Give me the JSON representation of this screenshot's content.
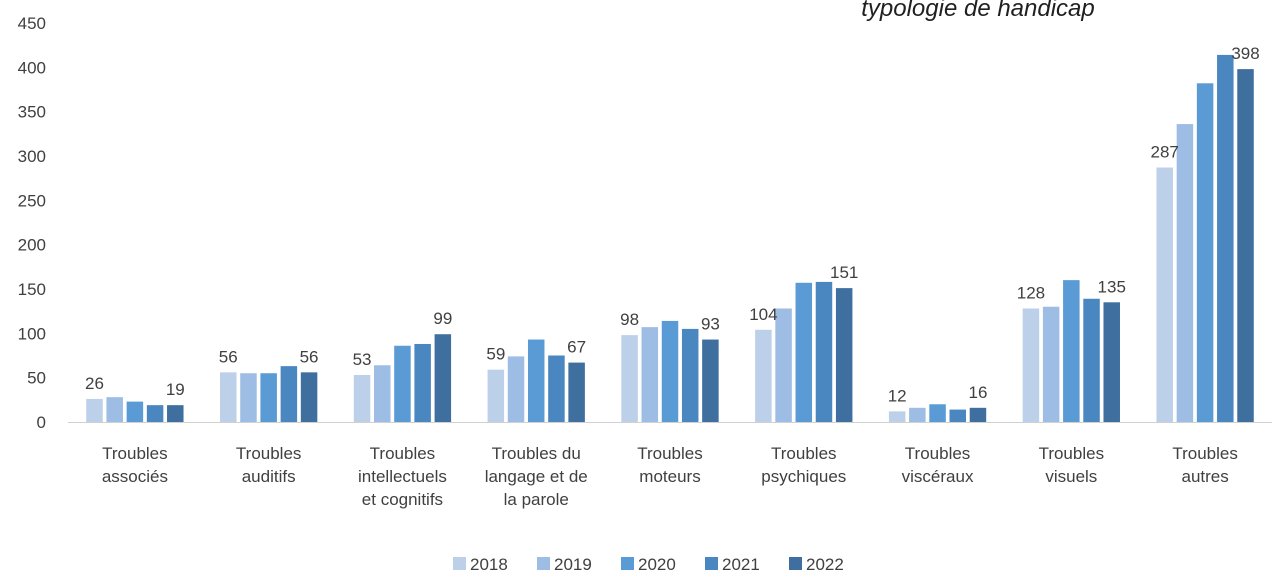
{
  "chart_data": {
    "type": "bar",
    "title_partial": "typologie de handicap",
    "ylim": [
      0,
      450
    ],
    "yticks": [
      0,
      50,
      100,
      150,
      200,
      250,
      300,
      350,
      400,
      450
    ],
    "grid": false,
    "legend_position": "bottom",
    "categories": [
      [
        "Troubles",
        "associés"
      ],
      [
        "Troubles",
        "auditifs"
      ],
      [
        "Troubles",
        "intellectuels",
        "et cognitifs"
      ],
      [
        "Troubles  du",
        "langage et de",
        "la parole"
      ],
      [
        "Troubles",
        "moteurs"
      ],
      [
        "Troubles",
        "psychiques"
      ],
      [
        "Troubles",
        "viscéraux"
      ],
      [
        "Troubles",
        "visuels"
      ],
      [
        "Troubles",
        "autres"
      ]
    ],
    "series": [
      {
        "name": "2018",
        "color": "#bdd0ea",
        "values": [
          26,
          56,
          53,
          59,
          98,
          104,
          12,
          128,
          287
        ],
        "labels": [
          "26",
          "56",
          "53",
          "59",
          "98",
          "104",
          "12",
          "128",
          "287"
        ]
      },
      {
        "name": "2019",
        "color": "#9dbde4",
        "values": [
          28,
          55,
          64,
          74,
          107,
          128,
          16,
          130,
          336
        ],
        "labels": [
          "",
          "",
          "",
          "",
          "",
          "",
          "",
          "",
          ""
        ]
      },
      {
        "name": "2020",
        "color": "#5b9bd5",
        "values": [
          23,
          55,
          86,
          93,
          114,
          157,
          20,
          160,
          382
        ],
        "labels": [
          "",
          "",
          "",
          "",
          "",
          "",
          "",
          "",
          ""
        ]
      },
      {
        "name": "2021",
        "color": "#4a86c0",
        "values": [
          19,
          63,
          88,
          75,
          105,
          158,
          14,
          139,
          414
        ],
        "labels": [
          "",
          "",
          "",
          "",
          "",
          "",
          "",
          "",
          ""
        ]
      },
      {
        "name": "2022",
        "color": "#3e6f9f",
        "values": [
          19,
          56,
          99,
          67,
          93,
          151,
          16,
          135,
          398
        ],
        "labels": [
          "19",
          "56",
          "99",
          "67",
          "93",
          "151",
          "16",
          "135",
          "398"
        ]
      }
    ]
  }
}
